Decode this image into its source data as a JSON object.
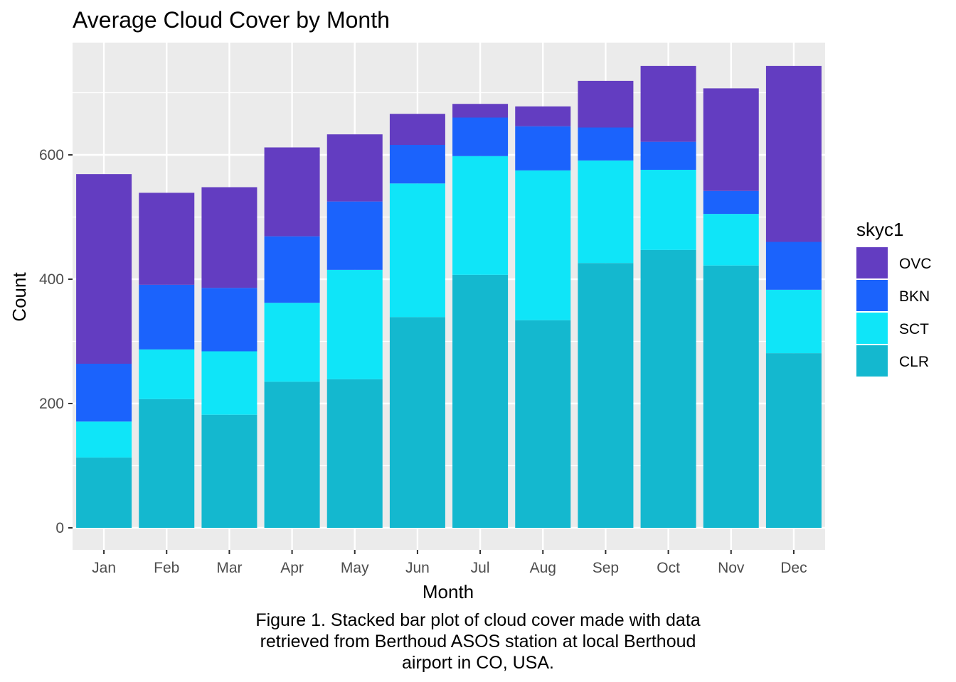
{
  "chart_data": {
    "type": "bar",
    "stacked": true,
    "title": "Average Cloud Cover by Month",
    "xlabel": "Month",
    "ylabel": "Count",
    "categories": [
      "Jan",
      "Feb",
      "Mar",
      "Apr",
      "May",
      "Jun",
      "Jul",
      "Aug",
      "Sep",
      "Oct",
      "Nov",
      "Dec"
    ],
    "ylim": [
      0,
      760
    ],
    "yticks": [
      0,
      200,
      400,
      600
    ],
    "legend_title": "skyc1",
    "legend_position": "right",
    "grid": true,
    "series": [
      {
        "name": "CLR",
        "color": "#14B8CF",
        "values": [
          113,
          207,
          182,
          235,
          239,
          339,
          407,
          334,
          426,
          447,
          422,
          281
        ]
      },
      {
        "name": "SCT",
        "color": "#0FE5F8",
        "values": [
          58,
          80,
          102,
          127,
          176,
          215,
          191,
          241,
          165,
          129,
          83,
          102
        ]
      },
      {
        "name": "BKN",
        "color": "#1B63FC",
        "values": [
          93,
          104,
          102,
          107,
          110,
          62,
          62,
          71,
          53,
          45,
          37,
          77
        ]
      },
      {
        "name": "OVC",
        "color": "#633DC1",
        "values": [
          305,
          148,
          162,
          143,
          108,
          50,
          22,
          32,
          75,
          122,
          165,
          283
        ]
      }
    ],
    "legend_order": [
      "OVC",
      "BKN",
      "SCT",
      "CLR"
    ]
  },
  "caption": {
    "line1": "Figure 1. Stacked bar plot of cloud cover made with data",
    "line2": "retrieved from Berthoud ASOS station at local Berthoud",
    "line3": "airport in CO, USA."
  }
}
